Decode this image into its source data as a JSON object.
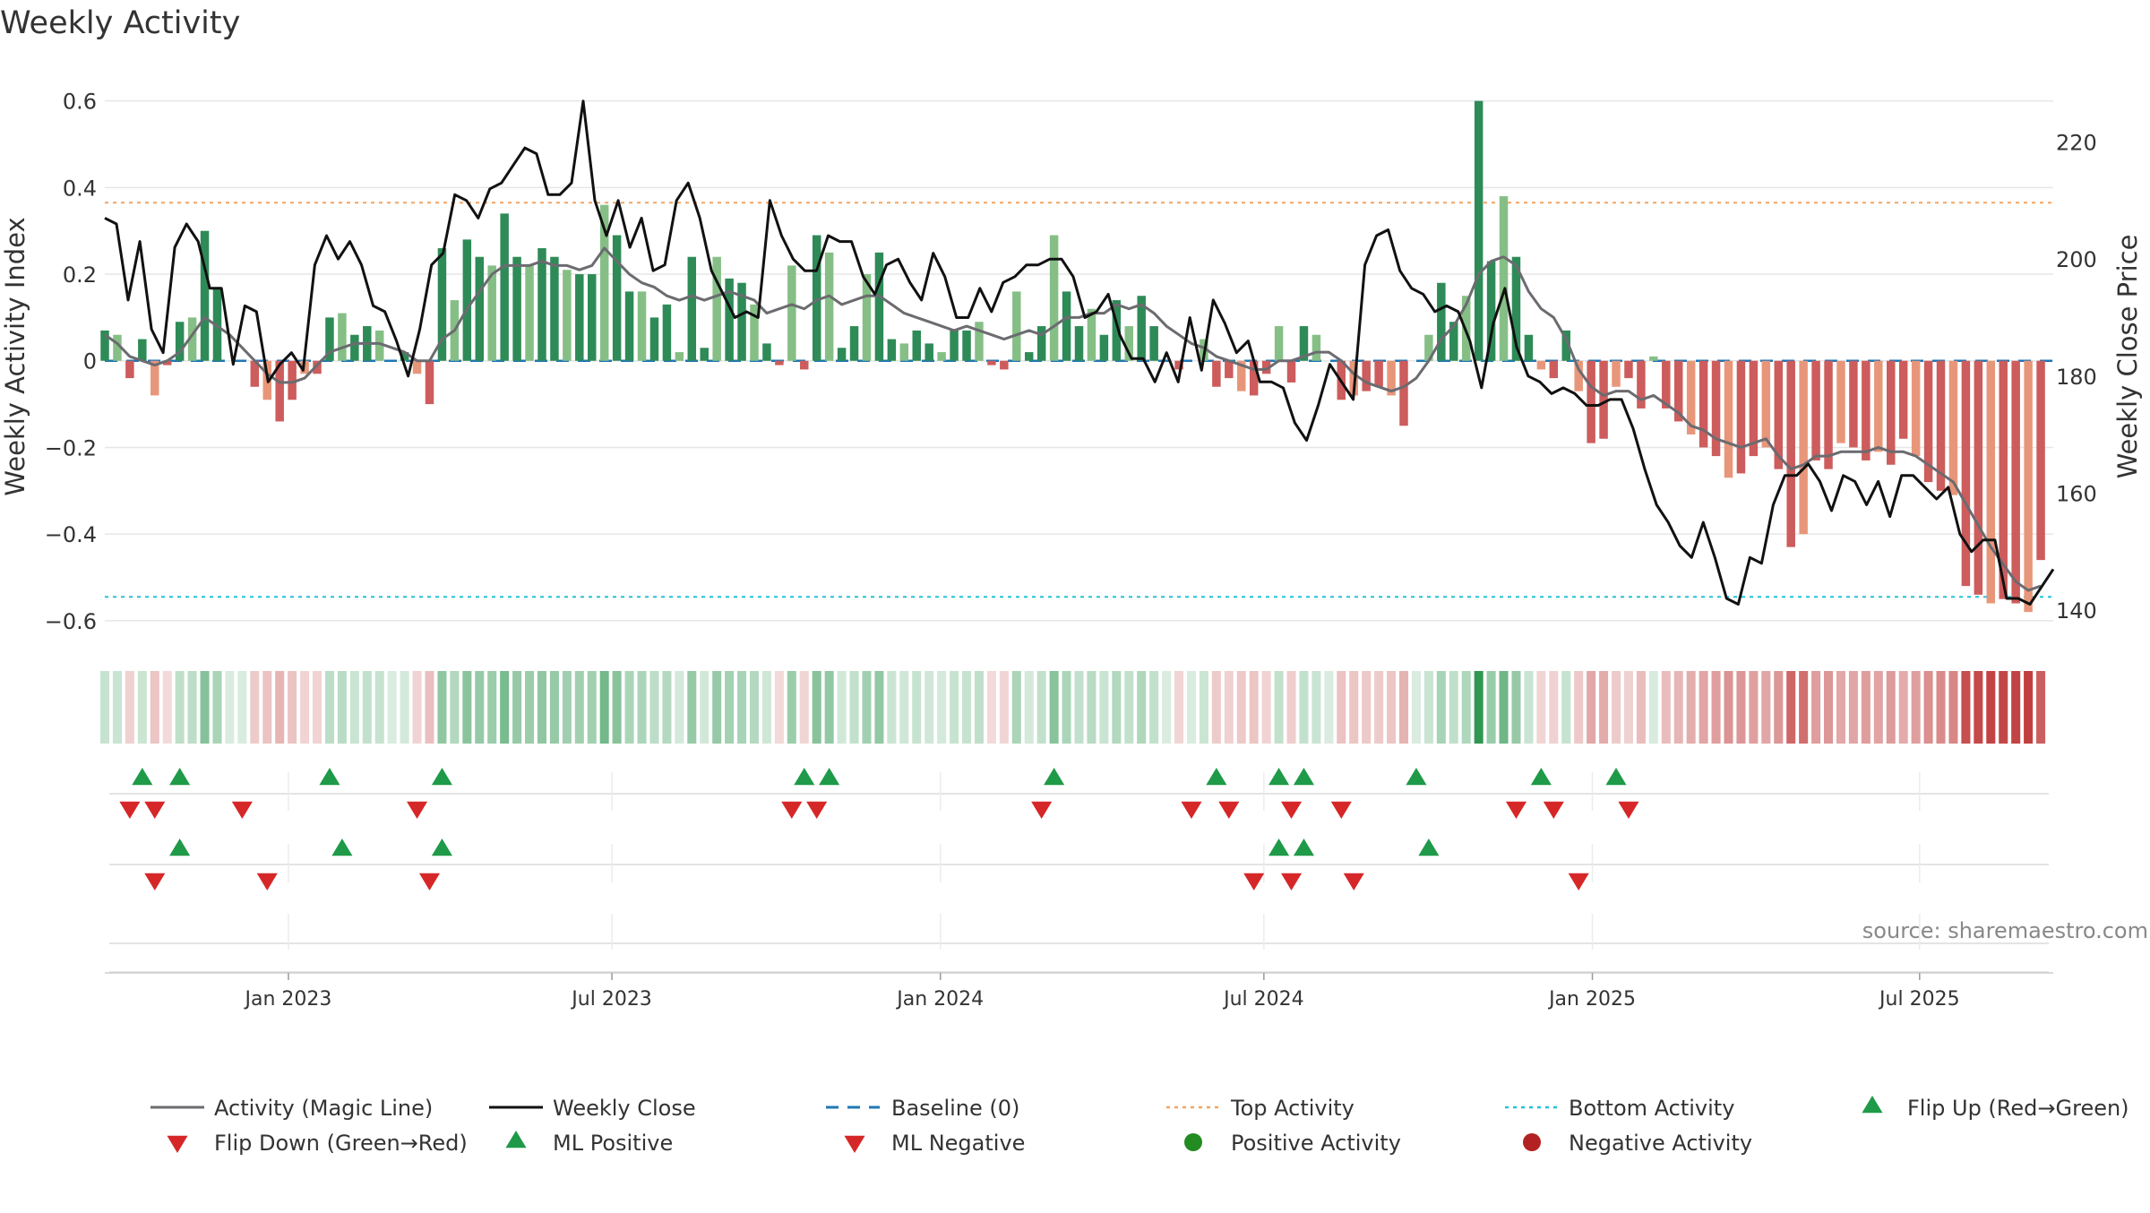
{
  "chart_data": {
    "type": "bar+line",
    "title": "Weekly Activity",
    "ylabel": "Weekly Activity Index",
    "y2label": "Weekly Close Price",
    "source": "source: sharemaestro.com",
    "ylim": [
      -0.65,
      0.62
    ],
    "y2lim": [
      134.5,
      228.5
    ],
    "yticks": [
      0.6,
      0.4,
      0.2,
      0,
      -0.2,
      -0.4,
      -0.6
    ],
    "ytick_labels": [
      "0.6",
      "0.4",
      "0.2",
      "0",
      "−0.2",
      "−0.4",
      "−0.6"
    ],
    "y2ticks": [
      220,
      200,
      180,
      160,
      140
    ],
    "y2tick_labels": [
      "220",
      "200",
      "180",
      "160",
      "140"
    ],
    "x_dates": [
      "Jan 2023",
      "Jul 2023",
      "Jan 2024",
      "Jul 2024",
      "Jan 2025",
      "Jul 2025"
    ],
    "x_week_index": [
      14.7,
      40.6,
      66.9,
      92.8,
      119.1,
      145.3
    ],
    "n_weeks": 157,
    "top_activity": 0.365,
    "bottom_activity": -0.545,
    "baseline": 0,
    "activity": [
      0.07,
      0.06,
      -0.04,
      0.05,
      -0.08,
      -0.01,
      0.09,
      0.1,
      0.3,
      0.17,
      0.0,
      0.0,
      -0.06,
      -0.09,
      -0.14,
      -0.09,
      -0.03,
      -0.03,
      0.1,
      0.11,
      0.06,
      0.08,
      0.07,
      0.0,
      0.02,
      -0.03,
      -0.1,
      0.26,
      0.14,
      0.28,
      0.24,
      0.22,
      0.34,
      0.24,
      0.22,
      0.26,
      0.24,
      0.21,
      0.2,
      0.2,
      0.36,
      0.29,
      0.16,
      0.16,
      0.1,
      0.13,
      0.02,
      0.24,
      0.03,
      0.24,
      0.19,
      0.18,
      0.13,
      0.04,
      -0.01,
      0.22,
      -0.02,
      0.29,
      0.25,
      0.03,
      0.08,
      0.2,
      0.25,
      0.05,
      0.04,
      0.07,
      0.04,
      0.02,
      0.07,
      0.07,
      0.09,
      -0.01,
      -0.02,
      0.16,
      0.02,
      0.08,
      0.29,
      0.16,
      0.08,
      0.12,
      0.06,
      0.14,
      0.08,
      0.15,
      0.08,
      0.0,
      -0.02,
      0.0,
      0.05,
      -0.06,
      -0.04,
      -0.07,
      -0.08,
      -0.03,
      0.08,
      -0.05,
      0.08,
      0.06,
      0.0,
      -0.09,
      -0.08,
      -0.07,
      -0.06,
      -0.08,
      -0.15,
      0.0,
      0.06,
      0.18,
      0.09,
      0.15,
      0.6,
      0.23,
      0.38,
      0.24,
      0.06,
      -0.02,
      -0.04,
      0.07,
      -0.07,
      -0.19,
      -0.18,
      -0.06,
      -0.04,
      -0.11,
      0.01,
      -0.11,
      -0.14,
      -0.17,
      -0.2,
      -0.22,
      -0.27,
      -0.26,
      -0.22,
      -0.2,
      -0.25,
      -0.43,
      -0.4,
      -0.23,
      -0.25,
      -0.19,
      -0.2,
      -0.23,
      -0.21,
      -0.24,
      -0.18,
      -0.22,
      -0.28,
      -0.3,
      -0.31,
      -0.52,
      -0.54,
      -0.56,
      -0.55,
      -0.56,
      -0.58,
      -0.46
    ],
    "magic_line": [
      0.06,
      0.04,
      0.01,
      0.0,
      -0.01,
      0.0,
      0.02,
      0.06,
      0.1,
      0.08,
      0.06,
      0.03,
      0.0,
      -0.03,
      -0.05,
      -0.05,
      -0.04,
      -0.01,
      0.02,
      0.03,
      0.04,
      0.04,
      0.04,
      0.03,
      0.02,
      0.0,
      0.0,
      0.05,
      0.07,
      0.12,
      0.16,
      0.2,
      0.22,
      0.22,
      0.22,
      0.23,
      0.22,
      0.22,
      0.21,
      0.22,
      0.26,
      0.23,
      0.2,
      0.18,
      0.17,
      0.15,
      0.14,
      0.15,
      0.14,
      0.15,
      0.16,
      0.15,
      0.14,
      0.11,
      0.12,
      0.13,
      0.12,
      0.14,
      0.15,
      0.13,
      0.14,
      0.15,
      0.15,
      0.13,
      0.11,
      0.1,
      0.09,
      0.08,
      0.07,
      0.08,
      0.07,
      0.06,
      0.05,
      0.06,
      0.07,
      0.06,
      0.08,
      0.1,
      0.1,
      0.11,
      0.11,
      0.13,
      0.12,
      0.13,
      0.11,
      0.08,
      0.06,
      0.04,
      0.03,
      0.01,
      0.0,
      -0.01,
      -0.02,
      -0.02,
      0.0,
      0.0,
      0.01,
      0.02,
      0.02,
      0.0,
      -0.03,
      -0.05,
      -0.06,
      -0.07,
      -0.06,
      -0.04,
      0.0,
      0.05,
      0.08,
      0.13,
      0.2,
      0.23,
      0.24,
      0.22,
      0.16,
      0.12,
      0.1,
      0.05,
      -0.02,
      -0.06,
      -0.08,
      -0.07,
      -0.07,
      -0.09,
      -0.08,
      -0.1,
      -0.12,
      -0.15,
      -0.16,
      -0.18,
      -0.19,
      -0.2,
      -0.19,
      -0.18,
      -0.22,
      -0.25,
      -0.24,
      -0.22,
      -0.22,
      -0.21,
      -0.21,
      -0.21,
      -0.2,
      -0.21,
      -0.21,
      -0.22,
      -0.24,
      -0.26,
      -0.28,
      -0.33,
      -0.38,
      -0.43,
      -0.47,
      -0.51,
      -0.53,
      -0.52
    ],
    "weekly_close": [
      207,
      206,
      193,
      203,
      188,
      184,
      202,
      206,
      203,
      195,
      195,
      182,
      192,
      191,
      179,
      182,
      184,
      181,
      199,
      204,
      200,
      203,
      199,
      192,
      191,
      186,
      180,
      188,
      199,
      201,
      211,
      210,
      207,
      212,
      213,
      216,
      219,
      218,
      211,
      211,
      213,
      227,
      210,
      204,
      210,
      202,
      207,
      198,
      199,
      210,
      213,
      207,
      198,
      194,
      190,
      191,
      190,
      210,
      204,
      200,
      198,
      198,
      204,
      203,
      203,
      197,
      194,
      199,
      200,
      196,
      193,
      201,
      197,
      190,
      190,
      195,
      191,
      196,
      197,
      199,
      199,
      200,
      200,
      197,
      190,
      191,
      194,
      187,
      183,
      183,
      179,
      184,
      179,
      190,
      181,
      193,
      189,
      184,
      186,
      179,
      179,
      178,
      172,
      169,
      175,
      182,
      179,
      176,
      199,
      204,
      205,
      198,
      195,
      194,
      191,
      192,
      191,
      186,
      178,
      189,
      195,
      185,
      180,
      179,
      177,
      178,
      177,
      175,
      175,
      176,
      176,
      171,
      164,
      158,
      155,
      151,
      149,
      155,
      149,
      142,
      141,
      149,
      148,
      158,
      163,
      163,
      165,
      162,
      157,
      163,
      162,
      158,
      162,
      156,
      163,
      163,
      161,
      159,
      161,
      153,
      150,
      152,
      152,
      142,
      142,
      141,
      144,
      147
    ]
  },
  "heat_strip": [
    0.07,
    0.06,
    -0.04,
    0.05,
    -0.08,
    -0.01,
    0.09,
    0.1,
    0.3,
    0.17,
    0.0,
    0.0,
    -0.06,
    -0.09,
    -0.14,
    -0.09,
    -0.03,
    -0.03,
    0.1,
    0.11,
    0.06,
    0.08,
    0.07,
    0.0,
    0.02,
    -0.03,
    -0.1,
    0.26,
    0.14,
    0.28,
    0.24,
    0.22,
    0.34,
    0.24,
    0.22,
    0.26,
    0.24,
    0.21,
    0.2,
    0.2,
    0.36,
    0.29,
    0.16,
    0.16,
    0.1,
    0.13,
    0.02,
    0.24,
    0.03,
    0.24,
    0.19,
    0.18,
    0.13,
    0.04,
    -0.01,
    0.22,
    -0.02,
    0.29,
    0.25,
    0.03,
    0.08,
    0.2,
    0.25,
    0.05,
    0.04,
    0.07,
    0.04,
    0.02,
    0.07,
    0.07,
    0.09,
    -0.01,
    -0.02,
    0.16,
    0.02,
    0.08,
    0.29,
    0.16,
    0.08,
    0.12,
    0.06,
    0.14,
    0.08,
    0.15,
    0.08,
    0.0,
    -0.02,
    0.0,
    0.05,
    -0.06,
    -0.04,
    -0.07,
    -0.08,
    -0.03,
    0.08,
    -0.05,
    0.08,
    0.06,
    0.0,
    -0.09,
    -0.08,
    -0.07,
    -0.06,
    -0.08,
    -0.15,
    0.0,
    0.06,
    0.18,
    0.09,
    0.15,
    0.6,
    0.23,
    0.38,
    0.24,
    0.06,
    -0.02,
    -0.04,
    0.07,
    -0.07,
    -0.19,
    -0.18,
    -0.06,
    -0.04,
    -0.11,
    0.01,
    -0.11,
    -0.14,
    -0.17,
    -0.2,
    -0.22,
    -0.27,
    -0.26,
    -0.22,
    -0.2,
    -0.25,
    -0.43,
    -0.4,
    -0.23,
    -0.25,
    -0.19,
    -0.2,
    -0.23,
    -0.21,
    -0.24,
    -0.18,
    -0.22,
    -0.28,
    -0.3,
    -0.31,
    -0.52,
    -0.54,
    -0.56,
    -0.55,
    -0.56,
    -0.58,
    -0.46
  ],
  "flip_up_weeks": [
    3,
    6,
    18,
    27,
    56,
    58,
    76,
    89,
    94,
    96,
    105,
    115,
    121
  ],
  "flip_down_weeks": [
    2,
    4,
    11,
    25,
    55,
    57,
    75,
    87,
    90,
    95,
    99,
    113,
    116,
    122
  ],
  "ml_positive_weeks": [
    6,
    19,
    27,
    94,
    96,
    106
  ],
  "ml_negative_weeks": [
    4,
    13,
    26,
    92,
    95,
    100,
    118
  ],
  "colors": {
    "pos_strong": "#2e8b57",
    "pos_light": "#86bf86",
    "neg_strong": "#cd5c5c",
    "neg_light": "#e8967a",
    "magic_line": "#6b6b70",
    "close_line": "#111111",
    "baseline": "#1f77b4",
    "top": "#f4a460",
    "bottom": "#22c3d6",
    "marker_up": "#1f9a48",
    "marker_down": "#d62728",
    "dot_pos": "#228b22",
    "dot_neg": "#b22222",
    "grid": "#e6e6e6",
    "text": "#333333",
    "source": "#888888"
  },
  "legend": {
    "magic_line": "Activity (Magic Line)",
    "weekly_close": "Weekly Close",
    "baseline": "Baseline (0)",
    "top_activity": "Top Activity",
    "bottom_activity": "Bottom Activity",
    "flip_up": "Flip Up (Red→Green)",
    "flip_down": "Flip Down (Green→Red)",
    "ml_positive": "ML Positive",
    "ml_negative": "ML Negative",
    "positive_activity": "Positive Activity",
    "negative_activity": "Negative Activity"
  }
}
